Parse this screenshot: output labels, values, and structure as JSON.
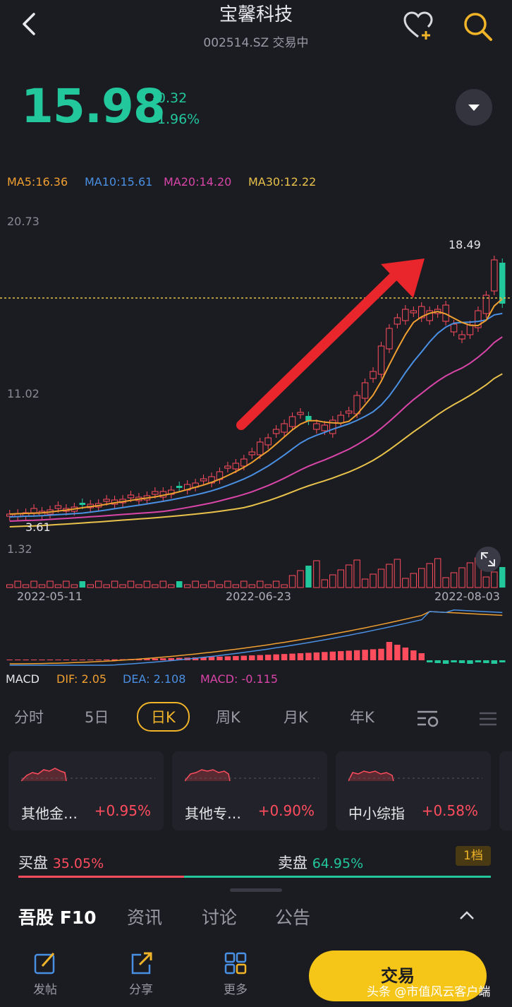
{
  "header": {
    "title": "宝馨科技",
    "subtitle": "002514.SZ 交易中"
  },
  "quote": {
    "price": "15.98",
    "change": "-0.32",
    "change_pct": "-1.96%",
    "color": "#22c79c"
  },
  "ma": [
    {
      "label": "MA5:16.36",
      "color": "#f0a030"
    },
    {
      "label": "MA10:15.61",
      "color": "#4a90e2"
    },
    {
      "label": "MA20:14.20",
      "color": "#d946a8"
    },
    {
      "label": "MA30:12.22",
      "color": "#e8c24a"
    }
  ],
  "axis": {
    "top": "20.73",
    "mid": "11.02",
    "vol": "1.32",
    "high_mark": "18.49",
    "low_mark": "3.61"
  },
  "dates": [
    "2022-05-11",
    "2022-06-23",
    "2022-08-03"
  ],
  "macd": {
    "label": "MACD",
    "dif": "DIF: 2.05",
    "dea": "DEA: 2.108",
    "macd": "MACD: -0.115"
  },
  "tabs": [
    "分时",
    "5日",
    "日K",
    "周K",
    "月K",
    "年K"
  ],
  "active_tab": "日K",
  "cards": [
    {
      "name": "其他金…",
      "value": "+0.95%"
    },
    {
      "name": "其他专…",
      "value": "+0.90%"
    },
    {
      "name": "中小综指",
      "value": "+0.58%"
    }
  ],
  "orderbook": {
    "buy_label": "买盘",
    "buy_pct": "35.05%",
    "sell_label": "卖盘",
    "sell_pct": "64.95%",
    "level": "1档",
    "buy_ratio": 0.3505
  },
  "footer_tabs": [
    "吾股 F10",
    "资讯",
    "讨论",
    "公告"
  ],
  "nav": {
    "post": "发帖",
    "share": "分享",
    "more": "更多",
    "trade": "交易"
  },
  "watermark": "头条 @市值风云客户端",
  "colors": {
    "up": "#ff4d5e",
    "down": "#22c79c",
    "accent": "#f0b429",
    "bg": "#1b1b22"
  }
}
